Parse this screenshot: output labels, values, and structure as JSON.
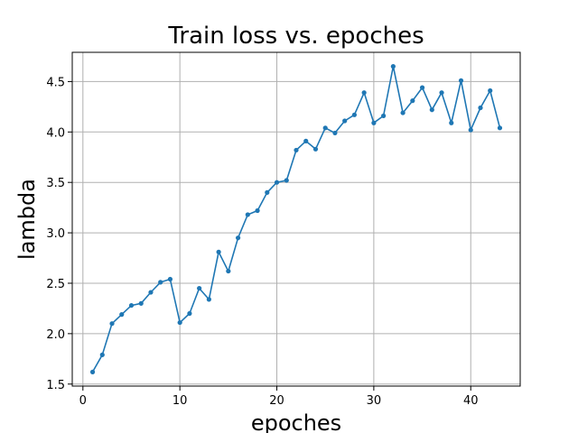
{
  "chart_data": {
    "type": "line",
    "title": "Train loss vs. epoches",
    "xlabel": "epoches",
    "ylabel": "lambda",
    "xlim": [
      -1.1,
      45.1
    ],
    "ylim": [
      1.48,
      4.79
    ],
    "xticks": [
      0,
      10,
      20,
      30,
      40
    ],
    "xtick_labels": [
      "0",
      "10",
      "20",
      "30",
      "40"
    ],
    "yticks": [
      1.5,
      2.0,
      2.5,
      3.0,
      3.5,
      4.0,
      4.5
    ],
    "ytick_labels": [
      "1.5",
      "2.0",
      "2.5",
      "3.0",
      "3.5",
      "4.0",
      "4.5"
    ],
    "grid": true,
    "line_color": "#1f77b4",
    "series": [
      {
        "x": [
          1,
          2,
          3,
          4,
          5,
          6,
          7,
          8,
          9,
          10,
          11,
          12,
          13,
          14,
          15,
          16,
          17,
          18,
          19,
          20,
          21,
          22,
          23,
          24,
          25,
          26,
          27,
          28,
          29,
          30,
          31,
          32,
          33,
          34,
          35,
          36,
          37,
          38,
          39,
          40,
          41,
          42,
          43
        ],
        "values": [
          1.62,
          1.79,
          2.1,
          2.19,
          2.28,
          2.3,
          2.41,
          2.51,
          2.54,
          2.11,
          2.2,
          2.45,
          2.34,
          2.81,
          2.62,
          2.95,
          3.18,
          3.22,
          3.4,
          3.5,
          3.52,
          3.82,
          3.91,
          3.83,
          4.04,
          3.99,
          4.11,
          4.17,
          4.39,
          4.09,
          4.16,
          4.65,
          4.19,
          4.31,
          4.44,
          4.22,
          4.39,
          4.09,
          4.51,
          4.02,
          4.24,
          4.41,
          4.04
        ]
      }
    ]
  }
}
